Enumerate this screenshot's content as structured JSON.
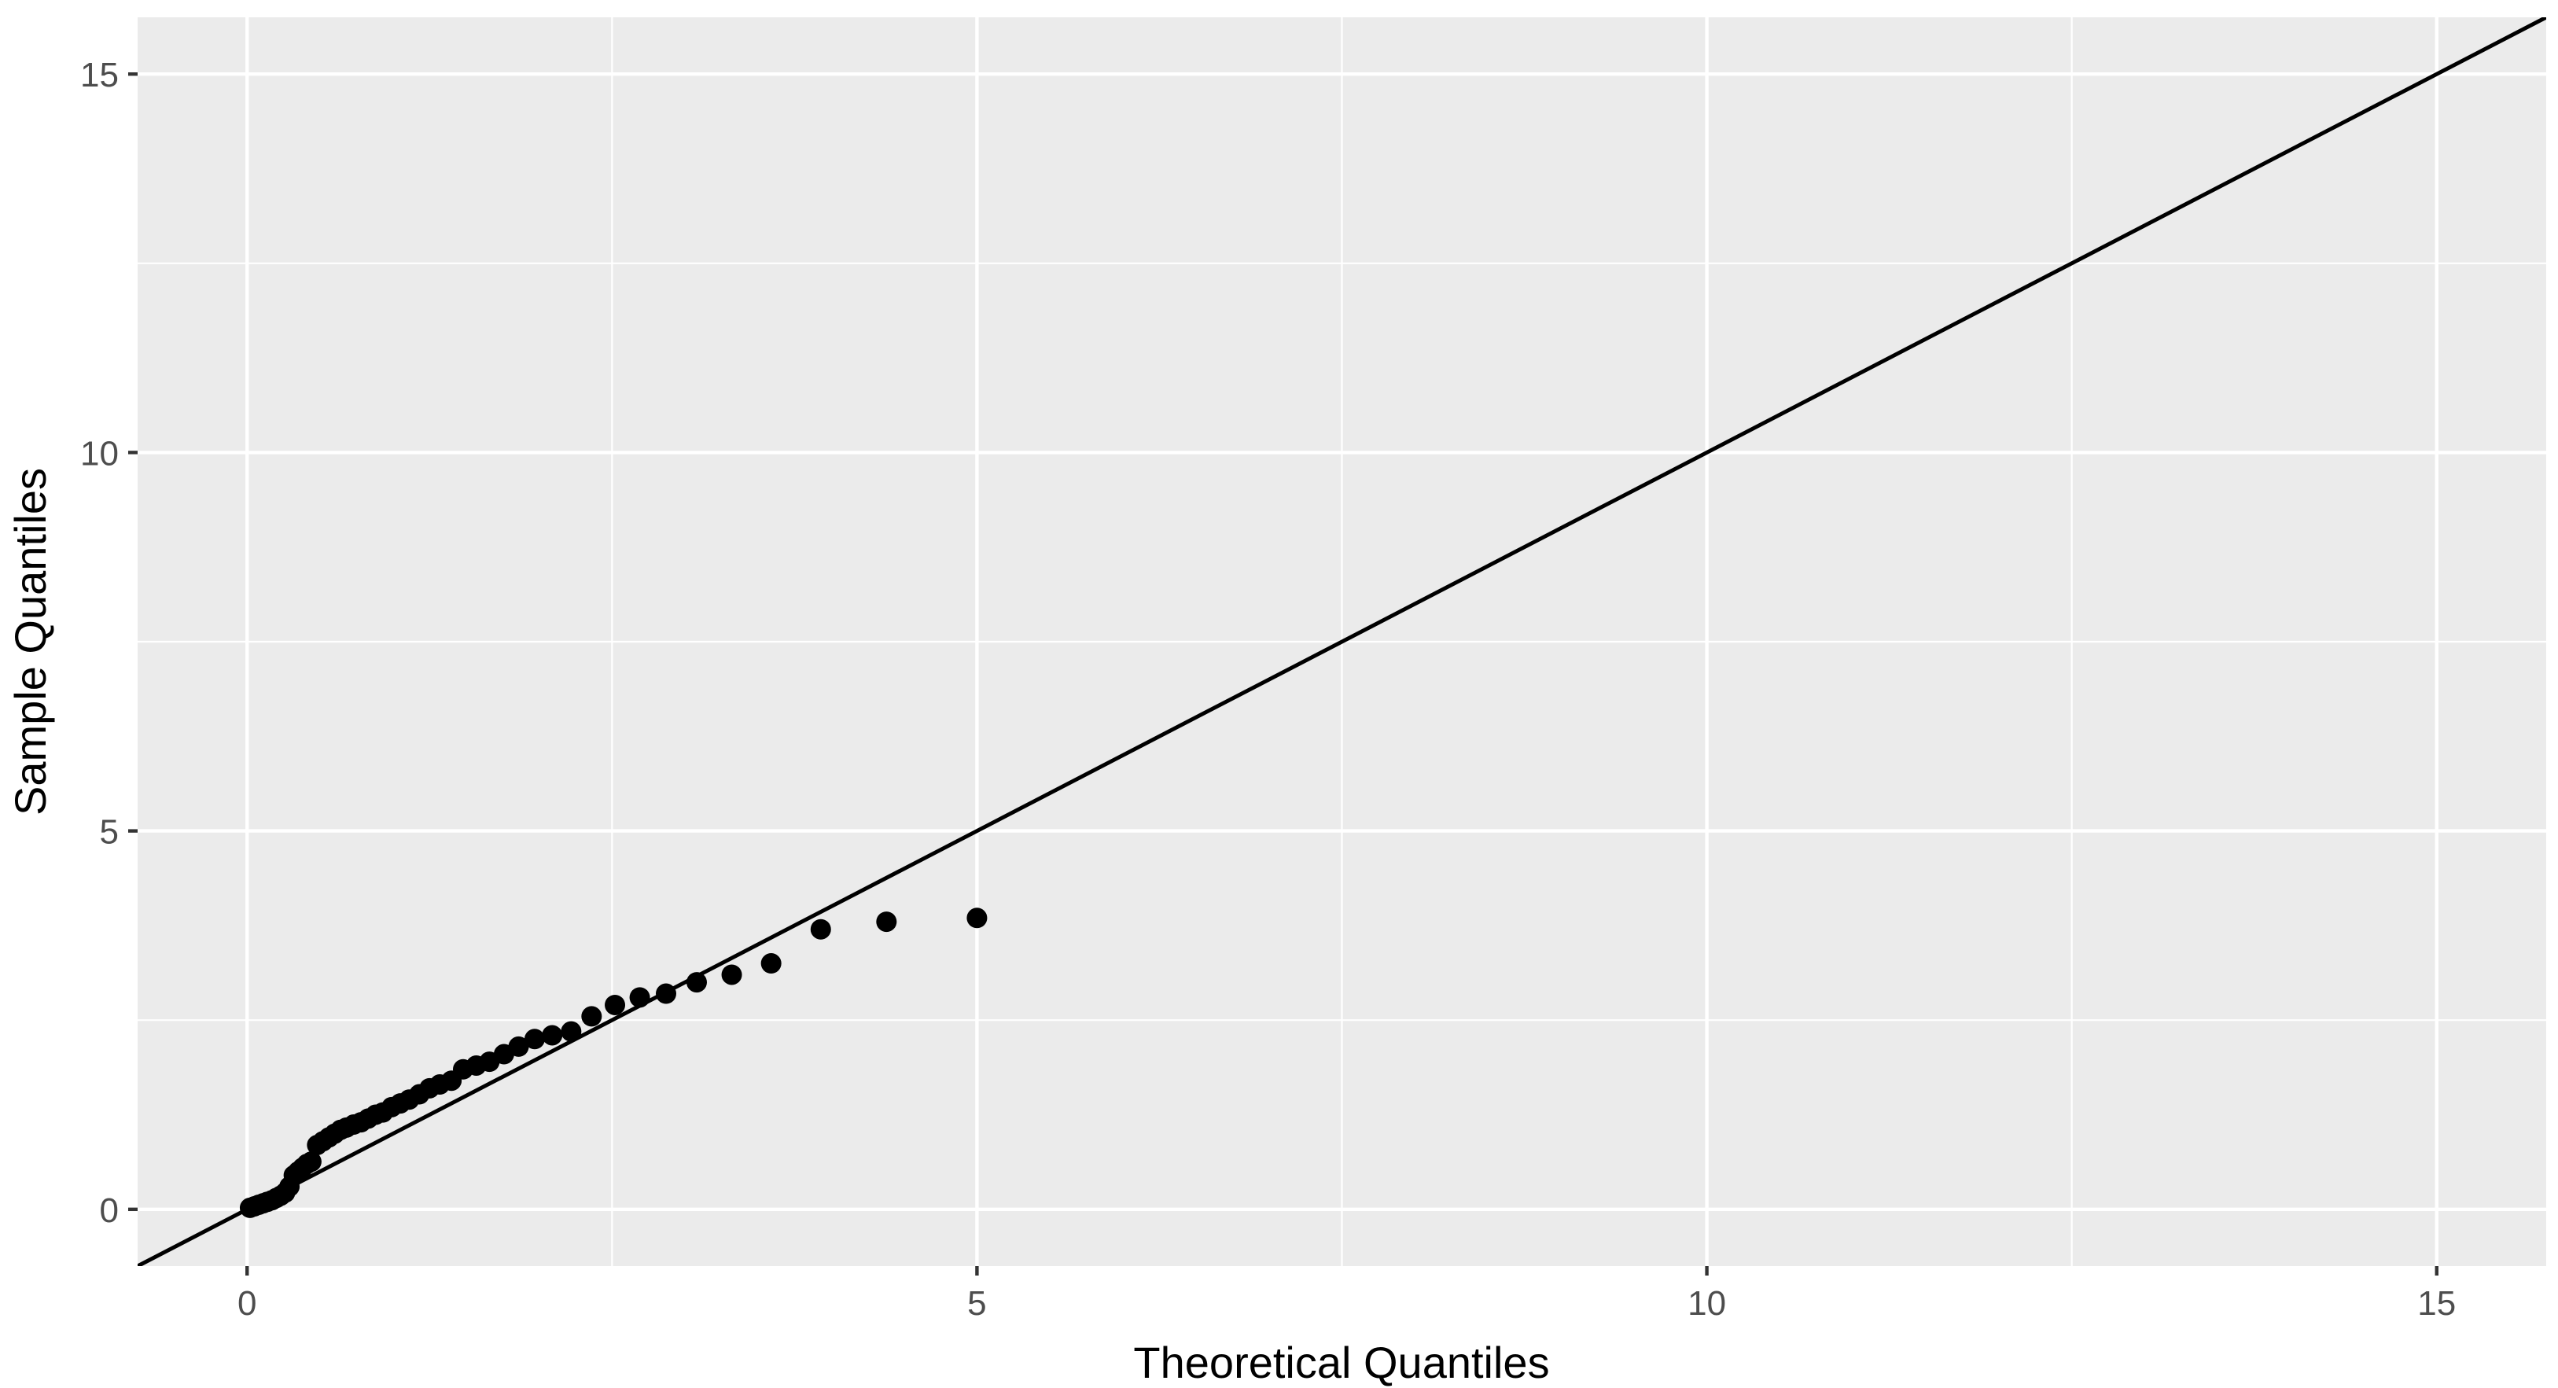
{
  "chart_data": {
    "type": "scatter",
    "xlabel": "Theoretical Quantiles",
    "ylabel": "Sample Quantiles",
    "xlim": [
      -0.75,
      15.75
    ],
    "ylim": [
      -0.75,
      15.75
    ],
    "x_ticks": [
      0,
      5,
      10,
      15
    ],
    "y_ticks": [
      0,
      5,
      10,
      15
    ],
    "x_tick_labels": [
      "0",
      "5",
      "10",
      "15"
    ],
    "y_tick_labels": [
      "0",
      "5",
      "10",
      "15"
    ],
    "x_minor": [
      2.5,
      7.5,
      12.5
    ],
    "y_minor": [
      2.5,
      7.5,
      12.5
    ],
    "grid": true,
    "legend": "none",
    "reference_line": {
      "slope": 1,
      "intercept": 0
    },
    "colors": {
      "panel": "#EBEBEB",
      "grid": "#FFFFFF",
      "points": "#000000",
      "line": "#000000",
      "tick_text": "#4D4D4D"
    },
    "x": [
      0.02,
      0.05,
      0.08,
      0.11,
      0.14,
      0.17,
      0.2,
      0.23,
      0.26,
      0.29,
      0.32,
      0.35,
      0.38,
      0.41,
      0.44,
      0.48,
      0.52,
      0.56,
      0.6,
      0.64,
      0.68,
      0.73,
      0.78,
      0.83,
      0.88,
      0.93,
      0.99,
      1.05,
      1.11,
      1.18,
      1.25,
      1.32,
      1.4,
      1.48,
      1.57,
      1.66,
      1.76,
      1.86,
      1.97,
      2.09,
      2.22,
      2.36,
      2.52,
      2.69,
      2.87,
      3.08,
      3.32,
      3.59,
      3.93,
      4.38,
      5.0
    ],
    "y": [
      0.02,
      0.04,
      0.06,
      0.08,
      0.1,
      0.12,
      0.15,
      0.18,
      0.22,
      0.3,
      0.45,
      0.5,
      0.55,
      0.6,
      0.63,
      0.85,
      0.9,
      0.95,
      1.0,
      1.05,
      1.08,
      1.12,
      1.15,
      1.2,
      1.25,
      1.28,
      1.35,
      1.4,
      1.45,
      1.52,
      1.6,
      1.65,
      1.7,
      1.85,
      1.9,
      1.95,
      2.05,
      2.15,
      2.25,
      2.3,
      2.35,
      2.55,
      2.7,
      2.8,
      2.85,
      3.0,
      3.1,
      3.25,
      3.7,
      3.8,
      3.85
    ]
  }
}
